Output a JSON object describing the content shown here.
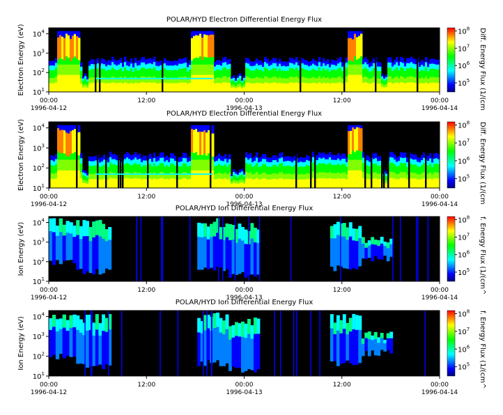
{
  "colors": {
    "colormap": [
      "#00007f",
      "#0000ff",
      "#0080ff",
      "#00ffff",
      "#00ff80",
      "#00ff00",
      "#80ff00",
      "#ffff00",
      "#ff8000",
      "#ff0000"
    ],
    "background": "#000000"
  },
  "chart_data": [
    {
      "type": "heatmap",
      "title": "POLAR/HYD  Electron Differential Energy Flux",
      "ylabel": "Electron Energy (eV)",
      "ylog": true,
      "ylim": [
        10,
        20000
      ],
      "yticks": [
        {
          "base": "10",
          "exp": "1"
        },
        {
          "base": "10",
          "exp": "2"
        },
        {
          "base": "10",
          "exp": "3"
        },
        {
          "base": "10",
          "exp": "4"
        }
      ],
      "x_ticks": [
        {
          "time": "00:00",
          "date": "1996-04-12"
        },
        {
          "time": "12:00",
          "date": ""
        },
        {
          "time": "00:00",
          "date": "1996-04-13"
        },
        {
          "time": "12:00",
          "date": ""
        },
        {
          "time": "00:00",
          "date": "1996-04-14"
        }
      ],
      "xlim": [
        "1996-04-12 00:00",
        "1996-04-14 00:00"
      ],
      "colorbar": {
        "label": "Diff. Energy Flux (1/(cm",
        "range": [
          30000,
          150000000
        ],
        "ticks": [
          {
            "base": "10",
            "exp": "5"
          },
          {
            "base": "10",
            "exp": "6"
          },
          {
            "base": "10",
            "exp": "7"
          },
          {
            "base": "10",
            "exp": "8"
          }
        ]
      },
      "kind": "electron"
    },
    {
      "type": "heatmap",
      "title": "POLAR/HYD  Electron Differential Energy Flux",
      "ylabel": "Electron Energy (eV)",
      "ylog": true,
      "ylim": [
        10,
        20000
      ],
      "yticks": [
        {
          "base": "10",
          "exp": "1"
        },
        {
          "base": "10",
          "exp": "2"
        },
        {
          "base": "10",
          "exp": "3"
        },
        {
          "base": "10",
          "exp": "4"
        }
      ],
      "x_ticks": [
        {
          "time": "00:00",
          "date": "1996-04-12"
        },
        {
          "time": "12:00",
          "date": ""
        },
        {
          "time": "00:00",
          "date": "1996-04-13"
        },
        {
          "time": "12:00",
          "date": ""
        },
        {
          "time": "00:00",
          "date": "1996-04-14"
        }
      ],
      "xlim": [
        "1996-04-12 00:00",
        "1996-04-14 00:00"
      ],
      "colorbar": {
        "label": "Diff. Energy Flux (1/(cm",
        "range": [
          30000,
          150000000
        ],
        "ticks": [
          {
            "base": "10",
            "exp": "5"
          },
          {
            "base": "10",
            "exp": "6"
          },
          {
            "base": "10",
            "exp": "7"
          },
          {
            "base": "10",
            "exp": "8"
          }
        ]
      },
      "kind": "electron"
    },
    {
      "type": "heatmap",
      "title": "POLAR/HYD  Ion Differential Energy Flux",
      "ylabel": "Ion Energy (eV)",
      "ylog": true,
      "ylim": [
        10,
        20000
      ],
      "yticks": [
        {
          "base": "10",
          "exp": "1"
        },
        {
          "base": "10",
          "exp": "2"
        },
        {
          "base": "10",
          "exp": "3"
        },
        {
          "base": "10",
          "exp": "4"
        }
      ],
      "x_ticks": [
        {
          "time": "00:00",
          "date": "1996-04-12"
        },
        {
          "time": "12:00",
          "date": ""
        },
        {
          "time": "00:00",
          "date": "1996-04-13"
        },
        {
          "time": "12:00",
          "date": ""
        },
        {
          "time": "00:00",
          "date": "1996-04-14"
        }
      ],
      "xlim": [
        "1996-04-12 00:00",
        "1996-04-14 00:00"
      ],
      "colorbar": {
        "label": "f. Energy Flux (1/(cm^",
        "range": [
          30000,
          150000000
        ],
        "ticks": [
          {
            "base": "10",
            "exp": "5"
          },
          {
            "base": "10",
            "exp": "6"
          },
          {
            "base": "10",
            "exp": "7"
          },
          {
            "base": "10",
            "exp": "8"
          }
        ]
      },
      "kind": "ion"
    },
    {
      "type": "heatmap",
      "title": "POLAR/HYD  Ion Differential Energy Flux",
      "ylabel": "Ion Energy (eV)",
      "ylog": true,
      "ylim": [
        10,
        20000
      ],
      "yticks": [
        {
          "base": "10",
          "exp": "1"
        },
        {
          "base": "10",
          "exp": "2"
        },
        {
          "base": "10",
          "exp": "3"
        },
        {
          "base": "10",
          "exp": "4"
        }
      ],
      "x_ticks": [
        {
          "time": "00:00",
          "date": "1996-04-12"
        },
        {
          "time": "12:00",
          "date": ""
        },
        {
          "time": "00:00",
          "date": "1996-04-13"
        },
        {
          "time": "12:00",
          "date": ""
        },
        {
          "time": "00:00",
          "date": "1996-04-14"
        }
      ],
      "xlim": [
        "1996-04-12 00:00",
        "1996-04-14 00:00"
      ],
      "colorbar": {
        "label": "f. Energy Flux (1/(cm^",
        "range": [
          30000,
          150000000
        ],
        "ticks": [
          {
            "base": "10",
            "exp": "5"
          },
          {
            "base": "10",
            "exp": "6"
          },
          {
            "base": "10",
            "exp": "7"
          },
          {
            "base": "10",
            "exp": "8"
          }
        ]
      },
      "kind": "ion"
    }
  ]
}
